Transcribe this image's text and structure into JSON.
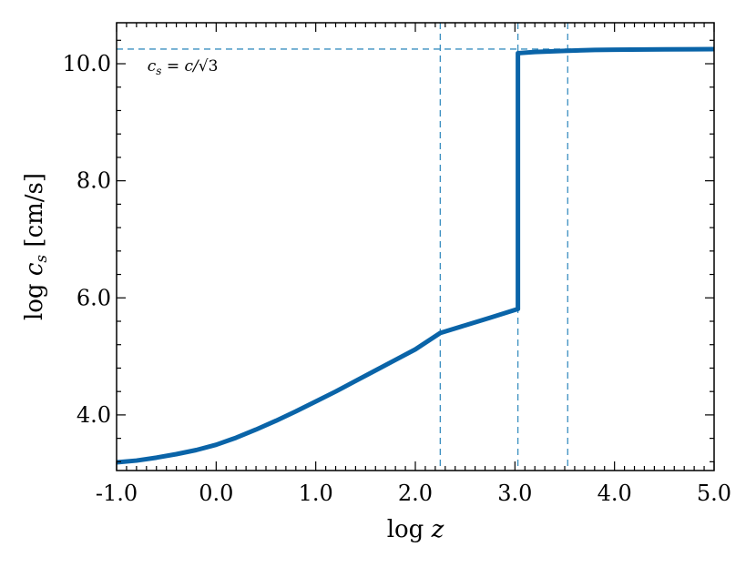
{
  "chart_data": {
    "type": "line",
    "xlabel": "log z",
    "ylabel": "log c_s [cm/s]",
    "xlim": [
      -1.0,
      5.0
    ],
    "ylim": [
      3.05,
      10.7
    ],
    "xticks": [
      -1.0,
      0.0,
      1.0,
      2.0,
      3.0,
      4.0,
      5.0
    ],
    "xtick_labels": [
      "-1.0",
      "0.0",
      "1.0",
      "2.0",
      "3.0",
      "4.0",
      "5.0"
    ],
    "yticks": [
      4.0,
      6.0,
      8.0,
      10.0
    ],
    "ytick_labels": [
      "4.0",
      "6.0",
      "8.0",
      "10.0"
    ],
    "x_minor_step": 0.1,
    "y_minor_step": 0.4,
    "grid": false,
    "series": [
      {
        "color": "#0a64a8",
        "x": [
          -1.0,
          -0.8,
          -0.6,
          -0.4,
          -0.2,
          0.0,
          0.2,
          0.4,
          0.6,
          0.8,
          1.0,
          1.2,
          1.4,
          1.6,
          1.8,
          2.0,
          2.25,
          2.5,
          2.75,
          3.03,
          3.03,
          3.2,
          3.5,
          3.8,
          4.0,
          4.5,
          5.0
        ],
        "y": [
          3.19,
          3.22,
          3.27,
          3.33,
          3.4,
          3.49,
          3.61,
          3.75,
          3.9,
          4.06,
          4.23,
          4.4,
          4.58,
          4.76,
          4.94,
          5.12,
          5.4,
          5.53,
          5.66,
          5.81,
          10.18,
          10.2,
          10.22,
          10.235,
          10.24,
          10.245,
          10.25
        ]
      }
    ],
    "reference_lines": {
      "color": "#3a8fc0",
      "vertical_x": [
        2.25,
        3.03,
        3.53
      ],
      "horizontal_y": [
        10.25
      ]
    },
    "annotation": {
      "text_main": "c",
      "text_sub": "s",
      "text_eq": " = c/",
      "text_sqrt_arg": "3",
      "x": -0.6,
      "y": 9.95
    }
  }
}
